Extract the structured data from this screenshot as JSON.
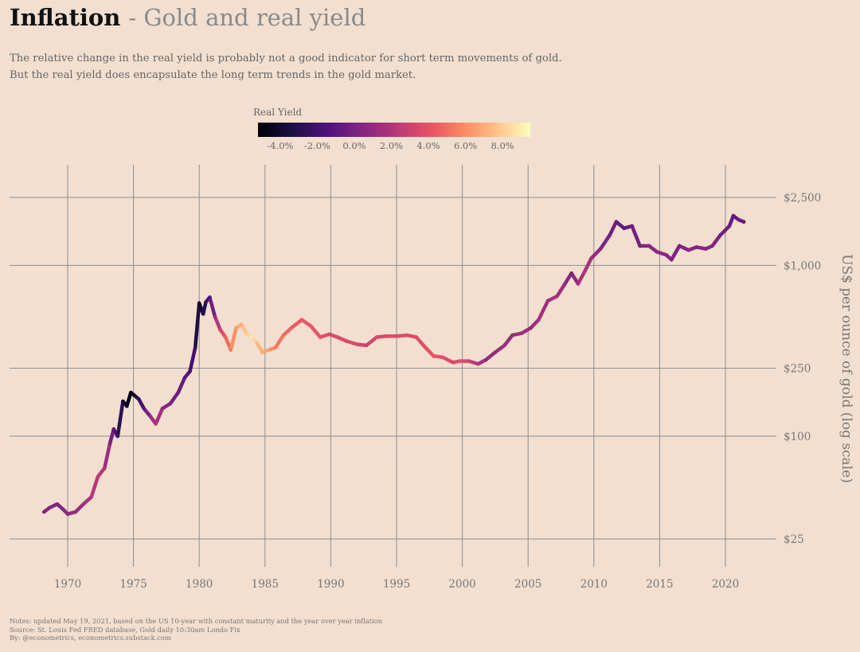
{
  "title": "Inflation",
  "subtitle": "- Gold and real yield",
  "description": [
    "The relative change in the real yield is probably not a good indicator for short term movements of gold.",
    "But the real yield does encapsulate the long term trends in the gold market."
  ],
  "notes": [
    "Notes: updated May 19, 2021, based on the US 10-year with constant maturity and the year over year inflation",
    "Source: St. Louis Fed FRED database, Gold daily 10:30am Londo Fix",
    "By: @econometrics, econometrics.substack.com"
  ],
  "chart_data": {
    "type": "line",
    "title": "Inflation - Gold and real yield",
    "xlabel": "",
    "ylabel": "US$ per ounce of gold (log scale)",
    "y_scale": "log",
    "xlim": [
      1966.5,
      1968.2
    ],
    "x_range": [
      1966.5,
      2024.0
    ],
    "ylim": [
      15,
      4200
    ],
    "x_ticks": [
      1970,
      1975,
      1980,
      1985,
      1990,
      1995,
      2000,
      2005,
      2010,
      2015,
      2020
    ],
    "x_tick_labels": [
      "1970",
      "1975",
      "1980",
      "1985",
      "1990",
      "1995",
      "2000",
      "2005",
      "2010",
      "2015",
      "2020"
    ],
    "y_ticks": [
      25,
      100,
      250,
      1000,
      2500
    ],
    "y_tick_labels": [
      "$25",
      "$100",
      "$250",
      "$1,000",
      "$2,500"
    ],
    "grid": true,
    "color_legend": {
      "title": "Real Yield",
      "ticks": [
        -4,
        -2,
        0,
        2,
        4,
        6,
        8
      ],
      "tick_labels": [
        "-4.0%",
        "-2.0%",
        "0.0%",
        "2.0%",
        "4.0%",
        "6.0%",
        "8.0%"
      ],
      "range": [
        -5.2,
        9.5
      ],
      "palette": [
        "#000004",
        "#1c1044",
        "#4f127b",
        "#812581",
        "#b5367a",
        "#e55064",
        "#fb8761",
        "#fec287",
        "#fcfdbf"
      ]
    },
    "series": [
      {
        "name": "Real Yield",
        "points": [
          [
            1968.2,
            36,
            0.3
          ],
          [
            1968.6,
            38,
            0.4
          ],
          [
            1969.2,
            40,
            0.2
          ],
          [
            1969.7,
            37,
            0.5
          ],
          [
            1970.0,
            35,
            0.8
          ],
          [
            1970.6,
            36,
            0.9
          ],
          [
            1971.2,
            40,
            1.5
          ],
          [
            1971.8,
            44,
            2.0
          ],
          [
            1972.3,
            58,
            2.6
          ],
          [
            1972.8,
            65,
            2.0
          ],
          [
            1973.2,
            90,
            0.5
          ],
          [
            1973.5,
            110,
            -1.0
          ],
          [
            1973.8,
            100,
            -2.0
          ],
          [
            1974.2,
            160,
            -3.8
          ],
          [
            1974.5,
            150,
            -4.5
          ],
          [
            1974.8,
            180,
            -5.0
          ],
          [
            1975.0,
            175,
            -4.5
          ],
          [
            1975.4,
            165,
            -3.0
          ],
          [
            1975.8,
            145,
            -1.0
          ],
          [
            1976.3,
            130,
            1.0
          ],
          [
            1976.7,
            118,
            2.0
          ],
          [
            1977.2,
            145,
            1.0
          ],
          [
            1977.8,
            155,
            0.0
          ],
          [
            1978.4,
            180,
            -0.5
          ],
          [
            1978.9,
            220,
            -1.0
          ],
          [
            1979.3,
            240,
            -1.5
          ],
          [
            1979.7,
            330,
            -2.5
          ],
          [
            1980.0,
            600,
            -4.5
          ],
          [
            1980.3,
            520,
            -3.5
          ],
          [
            1980.5,
            610,
            -2.5
          ],
          [
            1980.8,
            650,
            -1.5
          ],
          [
            1981.2,
            500,
            1.0
          ],
          [
            1981.6,
            420,
            3.0
          ],
          [
            1982.0,
            380,
            4.5
          ],
          [
            1982.4,
            320,
            5.5
          ],
          [
            1982.8,
            430,
            6.5
          ],
          [
            1983.2,
            450,
            7.0
          ],
          [
            1983.6,
            400,
            8.0
          ],
          [
            1984.0,
            380,
            8.8
          ],
          [
            1984.4,
            350,
            7.5
          ],
          [
            1984.8,
            310,
            7.0
          ],
          [
            1985.3,
            320,
            6.5
          ],
          [
            1985.8,
            330,
            5.5
          ],
          [
            1986.4,
            390,
            5.0
          ],
          [
            1987.0,
            430,
            4.5
          ],
          [
            1987.8,
            480,
            4.2
          ],
          [
            1988.5,
            440,
            4.3
          ],
          [
            1989.2,
            380,
            4.0
          ],
          [
            1989.9,
            395,
            3.5
          ],
          [
            1990.5,
            380,
            3.8
          ],
          [
            1991.2,
            360,
            3.5
          ],
          [
            1992.0,
            345,
            3.6
          ],
          [
            1992.7,
            340,
            3.0
          ],
          [
            1993.5,
            380,
            3.5
          ],
          [
            1994.2,
            385,
            3.5
          ],
          [
            1995.0,
            385,
            3.8
          ],
          [
            1995.8,
            390,
            3.5
          ],
          [
            1996.5,
            380,
            3.7
          ],
          [
            1997.2,
            330,
            4.0
          ],
          [
            1997.8,
            295,
            4.2
          ],
          [
            1998.5,
            290,
            4.0
          ],
          [
            1999.3,
            270,
            3.5
          ],
          [
            1999.8,
            275,
            4.0
          ],
          [
            2000.5,
            275,
            3.0
          ],
          [
            2001.2,
            265,
            2.0
          ],
          [
            2001.8,
            280,
            1.0
          ],
          [
            2002.5,
            310,
            1.0
          ],
          [
            2003.2,
            340,
            1.5
          ],
          [
            2003.8,
            390,
            1.0
          ],
          [
            2004.5,
            400,
            1.5
          ],
          [
            2005.2,
            430,
            1.0
          ],
          [
            2005.8,
            480,
            1.5
          ],
          [
            2006.5,
            620,
            1.5
          ],
          [
            2007.2,
            660,
            1.8
          ],
          [
            2007.8,
            780,
            1.0
          ],
          [
            2008.3,
            900,
            0.0
          ],
          [
            2008.8,
            780,
            1.5
          ],
          [
            2009.3,
            920,
            2.0
          ],
          [
            2009.8,
            1100,
            1.5
          ],
          [
            2010.5,
            1250,
            0.5
          ],
          [
            2011.2,
            1500,
            0.0
          ],
          [
            2011.7,
            1800,
            -0.5
          ],
          [
            2012.3,
            1650,
            -1.0
          ],
          [
            2012.9,
            1700,
            -0.5
          ],
          [
            2013.5,
            1300,
            0.0
          ],
          [
            2014.2,
            1300,
            0.5
          ],
          [
            2014.8,
            1200,
            0.8
          ],
          [
            2015.5,
            1150,
            0.5
          ],
          [
            2015.9,
            1080,
            0.3
          ],
          [
            2016.5,
            1300,
            0.0
          ],
          [
            2017.2,
            1230,
            0.5
          ],
          [
            2017.8,
            1280,
            0.3
          ],
          [
            2018.5,
            1250,
            0.5
          ],
          [
            2019.0,
            1300,
            0.6
          ],
          [
            2019.6,
            1500,
            0.0
          ],
          [
            2020.3,
            1700,
            -0.5
          ],
          [
            2020.6,
            1950,
            -1.0
          ],
          [
            2021.0,
            1850,
            -0.5
          ],
          [
            2021.4,
            1800,
            -0.8
          ]
        ]
      }
    ]
  }
}
